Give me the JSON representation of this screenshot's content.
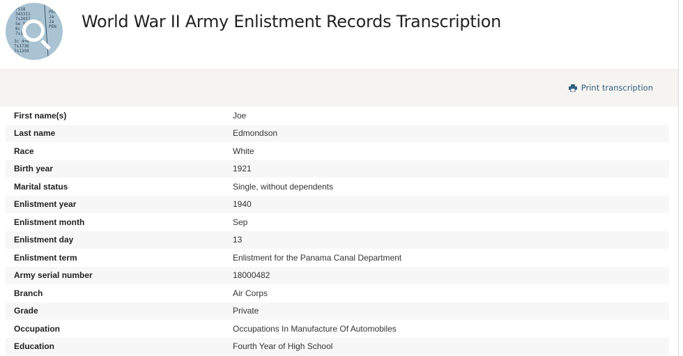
{
  "header": {
    "title": "World War II Army Enlistment Records Transcription",
    "logo_icon": "magnifier-over-records-icon"
  },
  "toolbar": {
    "print_label": "Print transcription",
    "print_icon": "printer-icon",
    "accent": "#2d5f82"
  },
  "rows": [
    {
      "label": "First name(s)",
      "value": "Joe"
    },
    {
      "label": "Last name",
      "value": "Edmondson"
    },
    {
      "label": "Race",
      "value": "White"
    },
    {
      "label": "Birth year",
      "value": "1921"
    },
    {
      "label": "Marital status",
      "value": "Single, without dependents"
    },
    {
      "label": "Enlistment year",
      "value": "1940"
    },
    {
      "label": "Enlistment month",
      "value": "Sep"
    },
    {
      "label": "Enlistment day",
      "value": "13"
    },
    {
      "label": "Enlistment term",
      "value": "Enlistment for the Panama Canal Department"
    },
    {
      "label": "Army serial number",
      "value": "18000482"
    },
    {
      "label": "Branch",
      "value": "Air Corps"
    },
    {
      "label": "Grade",
      "value": "Private"
    },
    {
      "label": "Occupation",
      "value": "Occupations In Manufacture Of Automobiles"
    },
    {
      "label": "Education",
      "value": "Fourth Year of High School"
    }
  ]
}
